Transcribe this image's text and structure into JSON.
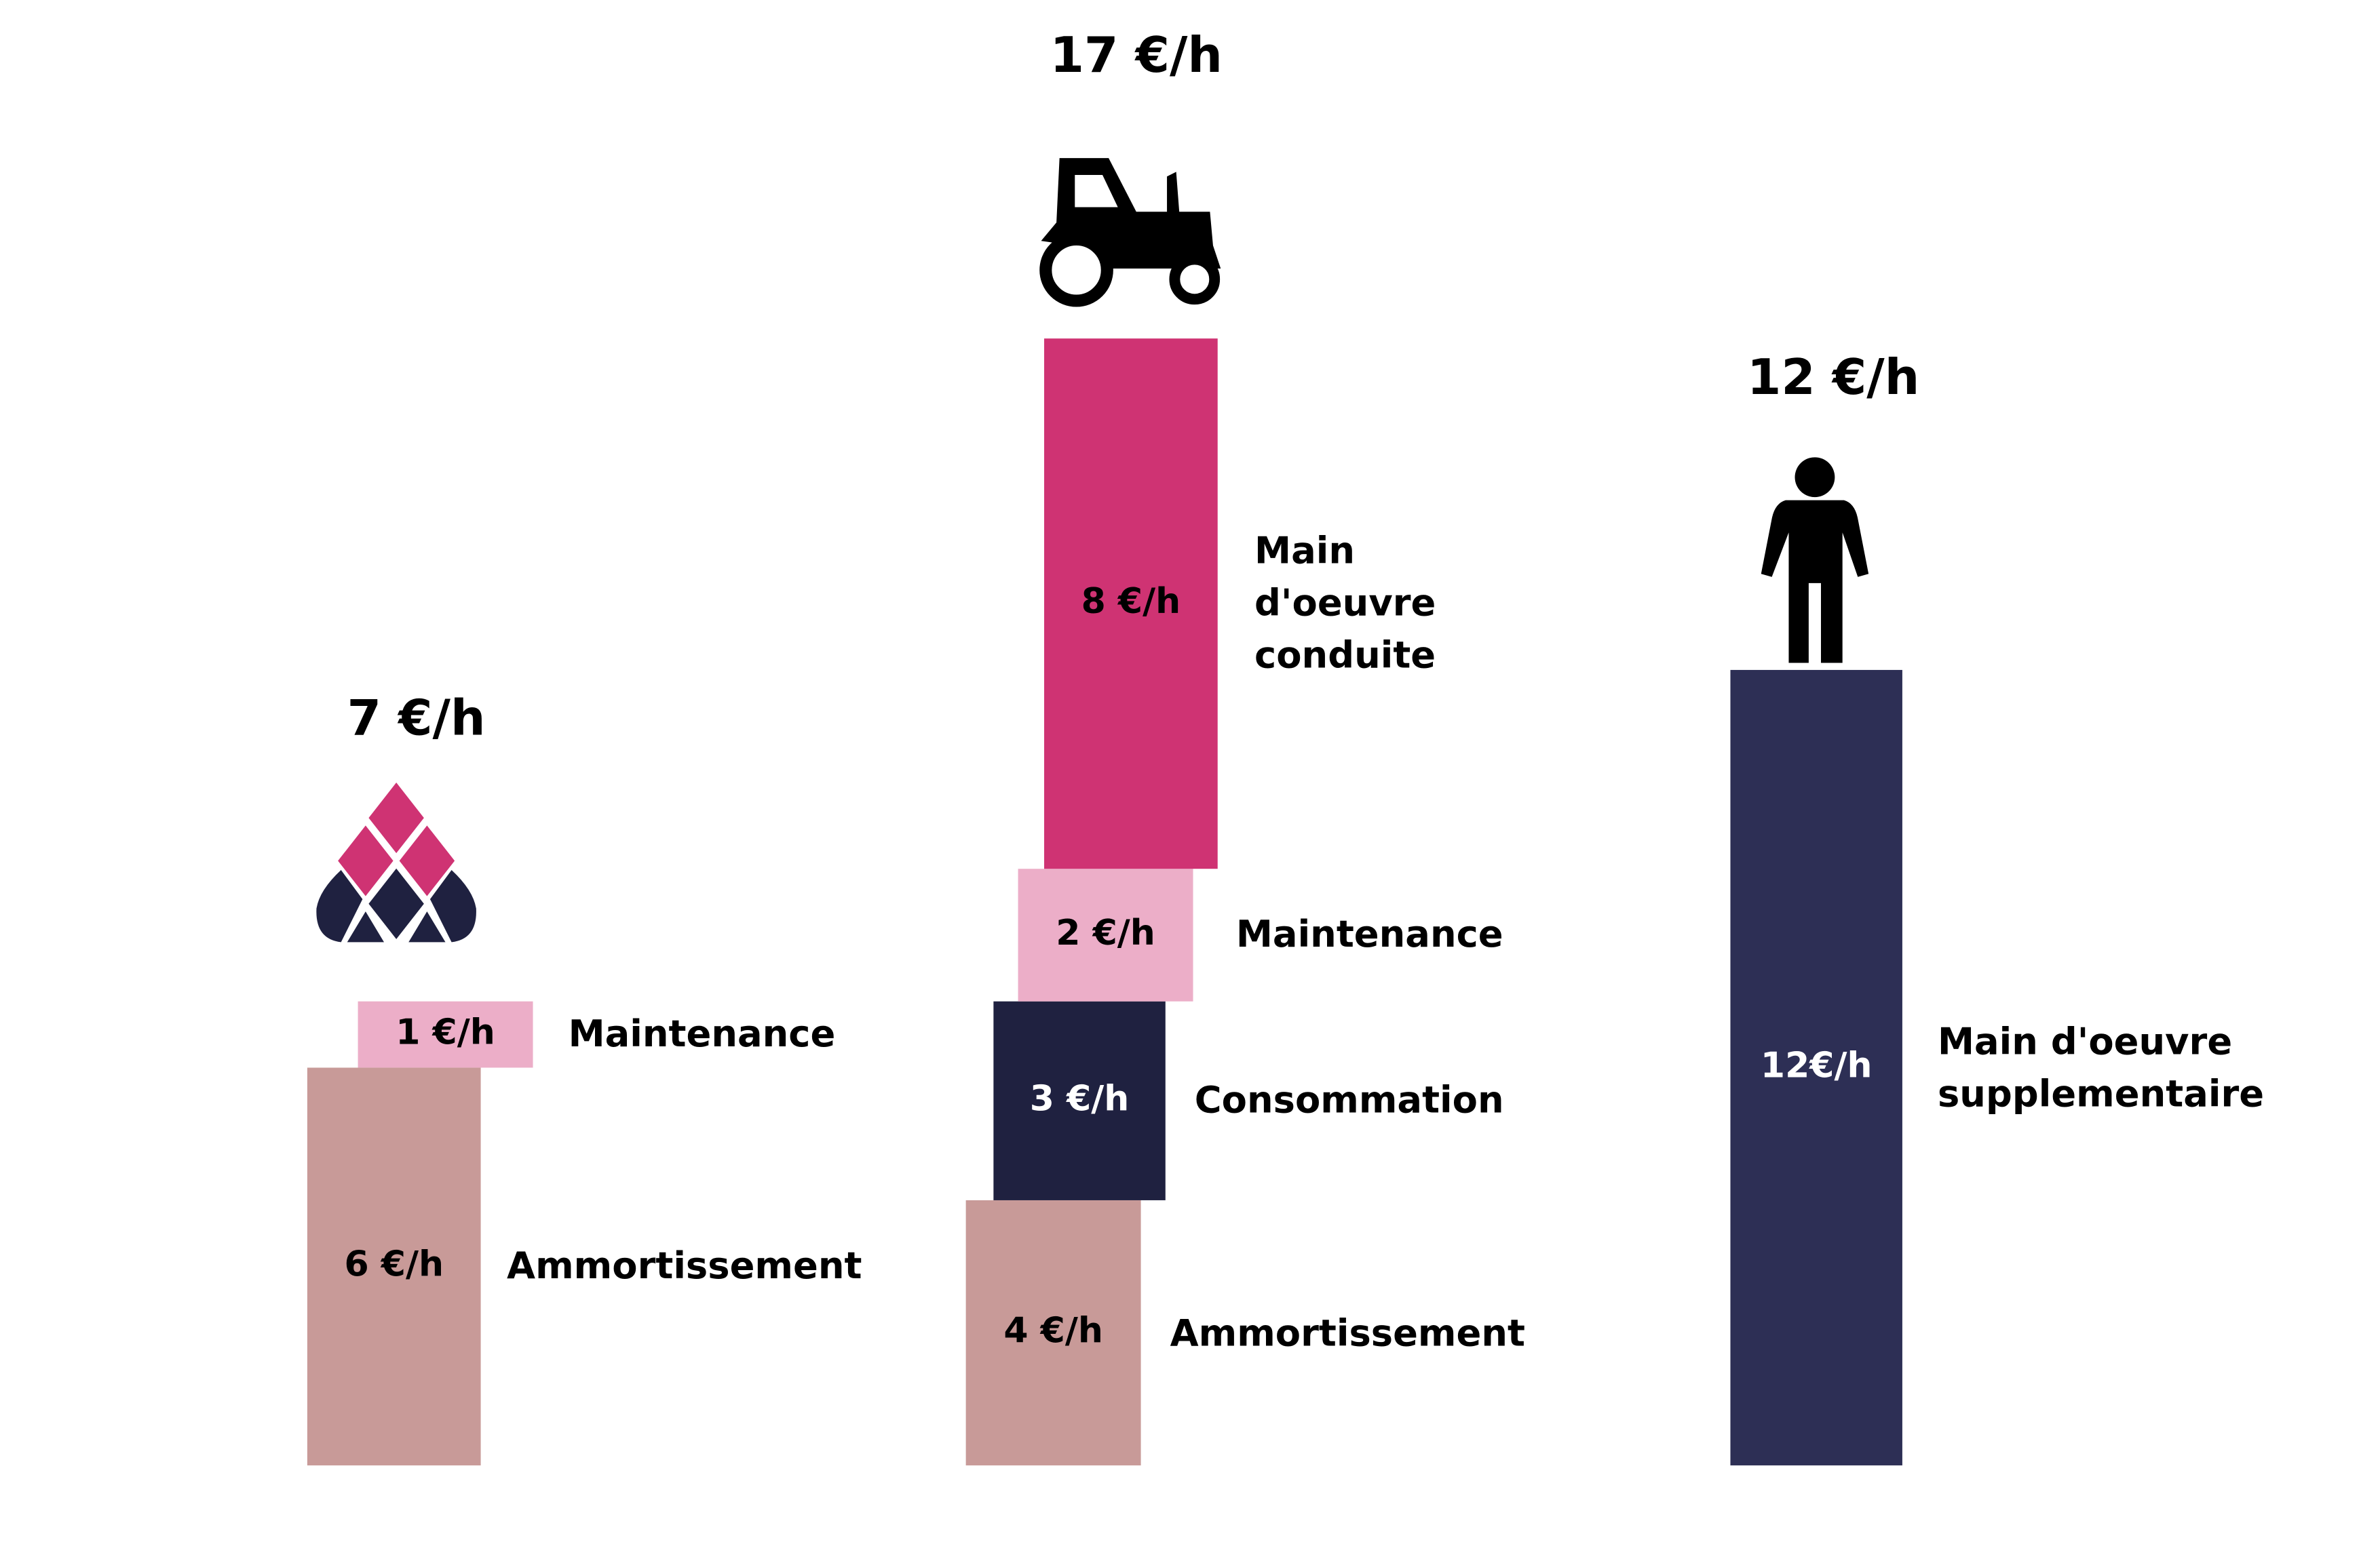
{
  "chart_data": {
    "type": "stacked-bar",
    "groups": [
      {
        "total": 7,
        "total_label": "7 €/h",
        "segments": [
          {
            "name": "Ammortissement",
            "value": 6,
            "value_label": "6 €/h",
            "color": "#c89a98"
          },
          {
            "name": "Maintenance",
            "value": 1,
            "value_label": "1 €/h",
            "color": "#ecaec8"
          }
        ]
      },
      {
        "total": 17,
        "total_label": "17 €/h",
        "segments": [
          {
            "name": "Ammortissement",
            "value": 4,
            "value_label": "4 €/h",
            "color": "#c89a98"
          },
          {
            "name": "Consommation",
            "value": 3,
            "value_label": "3 €/h",
            "color": "#1f2140"
          },
          {
            "name": "Maintenance",
            "value": 2,
            "value_label": "2 €/h",
            "color": "#ecaec8"
          },
          {
            "name": "Main d'oeuvre conduite",
            "value": 8,
            "value_label": "8 €/h",
            "color": "#cf3373"
          }
        ]
      },
      {
        "total": 12,
        "total_label": "12 €/h",
        "segments": [
          {
            "name": "Main d'oeuvre supplementaire",
            "value": 12,
            "value_label": "12€/h",
            "color": "#2d2f55"
          }
        ]
      }
    ]
  }
}
